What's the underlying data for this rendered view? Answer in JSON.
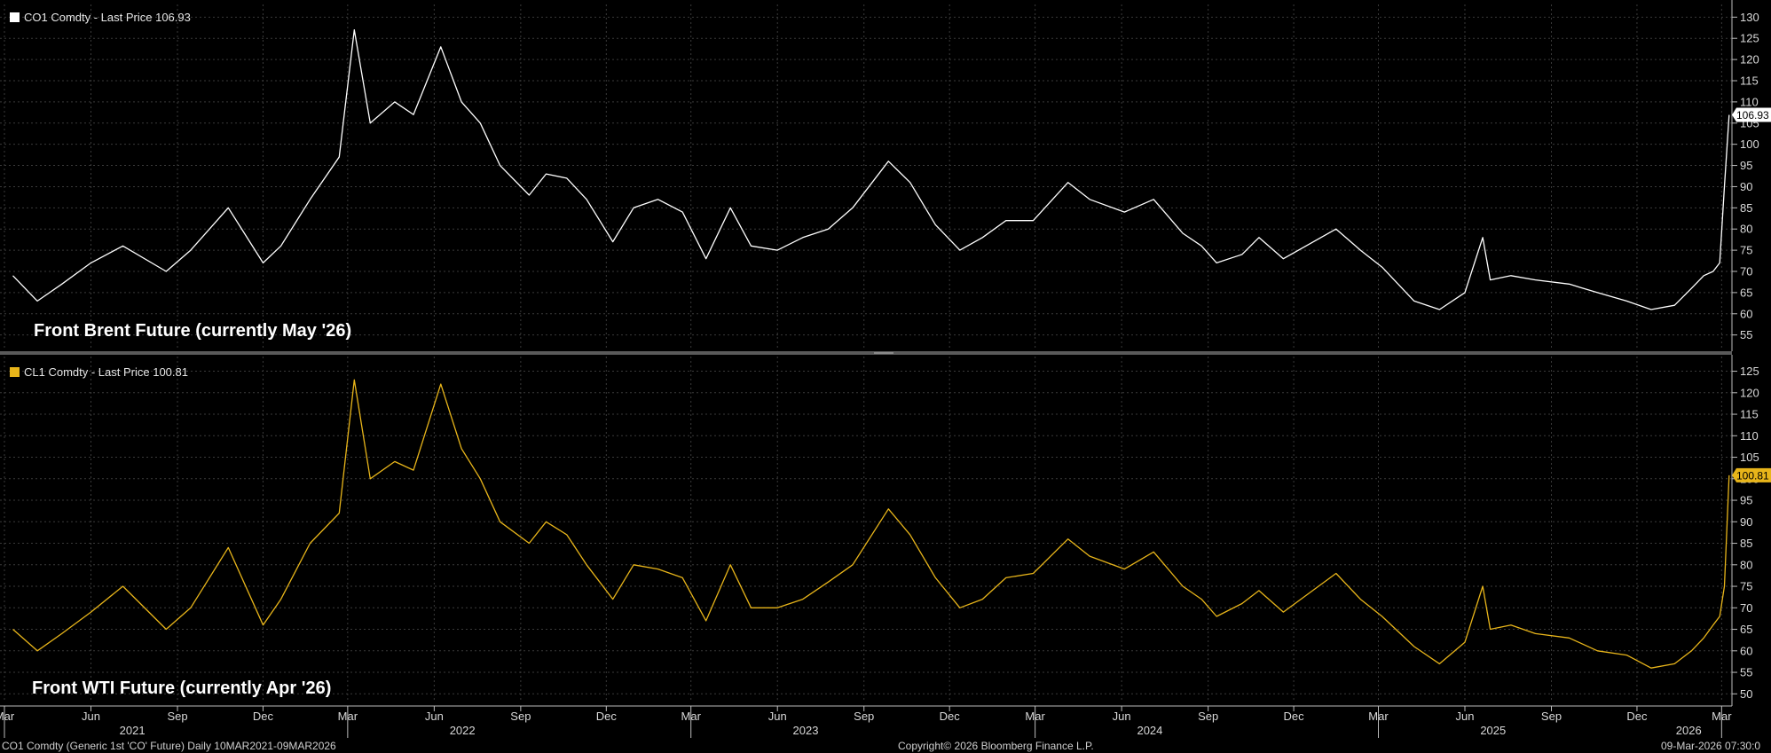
{
  "chart_data": [
    {
      "type": "line",
      "legend": "CO1 Comdty - Last Price 106.93",
      "annotation": "Front Brent Future (currently May '26)",
      "last_value": 106.93,
      "last_value_label": "106.93",
      "color": "#ffffff",
      "ylim": [
        52,
        133
      ],
      "yticks": [
        55,
        60,
        65,
        70,
        75,
        80,
        85,
        90,
        95,
        100,
        105,
        110,
        115,
        120,
        125,
        130
      ],
      "x": [
        "2021-03-10",
        "2021-04-05",
        "2021-05-01",
        "2021-06-01",
        "2021-07-05",
        "2021-08-20",
        "2021-09-15",
        "2021-10-25",
        "2021-12-01",
        "2021-12-20",
        "2022-01-20",
        "2022-02-20",
        "2022-03-08",
        "2022-03-25",
        "2022-04-20",
        "2022-05-10",
        "2022-06-08",
        "2022-06-30",
        "2022-07-20",
        "2022-08-10",
        "2022-09-10",
        "2022-09-28",
        "2022-10-20",
        "2022-11-10",
        "2022-12-08",
        "2022-12-30",
        "2023-01-25",
        "2023-02-20",
        "2023-03-17",
        "2023-04-12",
        "2023-05-04",
        "2023-06-01",
        "2023-06-28",
        "2023-07-25",
        "2023-08-20",
        "2023-09-27",
        "2023-10-20",
        "2023-11-16",
        "2023-12-12",
        "2024-01-05",
        "2024-01-30",
        "2024-02-28",
        "2024-04-05",
        "2024-04-28",
        "2024-06-04",
        "2024-07-05",
        "2024-08-05",
        "2024-08-25",
        "2024-09-10",
        "2024-10-07",
        "2024-10-25",
        "2024-11-20",
        "2025-01-15",
        "2025-02-10",
        "2025-03-05",
        "2025-04-08",
        "2025-05-05",
        "2025-06-01",
        "2025-06-20",
        "2025-06-28",
        "2025-07-20",
        "2025-08-15",
        "2025-09-20",
        "2025-10-20",
        "2025-11-20",
        "2025-12-16",
        "2026-01-10",
        "2026-01-28",
        "2026-02-10",
        "2026-02-20",
        "2026-02-27",
        "2026-03-04",
        "2026-03-09"
      ],
      "values": [
        69,
        63,
        67,
        72,
        76,
        70,
        75,
        85,
        72,
        76,
        87,
        97,
        127,
        105,
        110,
        107,
        123,
        110,
        105,
        95,
        88,
        93,
        92,
        87,
        77,
        85,
        87,
        84,
        73,
        85,
        76,
        75,
        78,
        80,
        85,
        96,
        91,
        81,
        75,
        78,
        82,
        82,
        91,
        87,
        84,
        87,
        79,
        76,
        72,
        74,
        78,
        73,
        80,
        75,
        71,
        63,
        61,
        65,
        78,
        68,
        69,
        68,
        67,
        65,
        63,
        61,
        62,
        66,
        69,
        70,
        72,
        90,
        106.93
      ]
    },
    {
      "type": "line",
      "legend": "CL1 Comdty - Last Price 100.81",
      "annotation": "Front WTI Future (currently Apr '26)",
      "last_value": 100.81,
      "last_value_label": "100.81",
      "color": "#e8b51a",
      "ylim": [
        48,
        128
      ],
      "yticks": [
        50,
        55,
        60,
        65,
        70,
        75,
        80,
        85,
        90,
        95,
        100,
        105,
        110,
        115,
        120,
        125
      ],
      "x": [
        "2021-03-10",
        "2021-04-05",
        "2021-05-01",
        "2021-06-01",
        "2021-07-05",
        "2021-08-20",
        "2021-09-15",
        "2021-10-25",
        "2021-12-01",
        "2021-12-20",
        "2022-01-20",
        "2022-02-20",
        "2022-03-08",
        "2022-03-25",
        "2022-04-20",
        "2022-05-10",
        "2022-06-08",
        "2022-06-30",
        "2022-07-20",
        "2022-08-10",
        "2022-09-10",
        "2022-09-28",
        "2022-10-20",
        "2022-11-10",
        "2022-12-08",
        "2022-12-30",
        "2023-01-25",
        "2023-02-20",
        "2023-03-17",
        "2023-04-12",
        "2023-05-04",
        "2023-06-01",
        "2023-06-28",
        "2023-07-25",
        "2023-08-20",
        "2023-09-27",
        "2023-10-20",
        "2023-11-16",
        "2023-12-12",
        "2024-01-05",
        "2024-01-30",
        "2024-02-28",
        "2024-04-05",
        "2024-04-28",
        "2024-06-04",
        "2024-07-05",
        "2024-08-05",
        "2024-08-25",
        "2024-09-10",
        "2024-10-07",
        "2024-10-25",
        "2024-11-20",
        "2025-01-15",
        "2025-02-10",
        "2025-03-05",
        "2025-04-08",
        "2025-05-05",
        "2025-06-01",
        "2025-06-20",
        "2025-06-28",
        "2025-07-20",
        "2025-08-15",
        "2025-09-20",
        "2025-10-20",
        "2025-11-20",
        "2025-12-16",
        "2026-01-10",
        "2026-01-28",
        "2026-02-10",
        "2026-02-20",
        "2026-02-27",
        "2026-03-04",
        "2026-03-09"
      ],
      "values": [
        65,
        60,
        64,
        69,
        75,
        65,
        70,
        84,
        66,
        72,
        85,
        92,
        123,
        100,
        104,
        102,
        122,
        107,
        100,
        90,
        85,
        90,
        87,
        80,
        72,
        80,
        79,
        77,
        67,
        80,
        70,
        70,
        72,
        76,
        80,
        93,
        87,
        77,
        70,
        72,
        77,
        78,
        86,
        82,
        79,
        83,
        75,
        72,
        68,
        71,
        74,
        69,
        78,
        72,
        68,
        61,
        57,
        62,
        75,
        65,
        66,
        64,
        63,
        60,
        59,
        56,
        57,
        60,
        63,
        66,
        68,
        75,
        100.81
      ]
    },
    {
      "type": "axis",
      "x_range": [
        "2021-03-01",
        "2026-03-12"
      ],
      "month_ticks": [
        {
          "date": "2021-03-01",
          "label": "Mar"
        },
        {
          "date": "2021-06-01",
          "label": "Jun"
        },
        {
          "date": "2021-09-01",
          "label": "Sep"
        },
        {
          "date": "2021-12-01",
          "label": "Dec"
        },
        {
          "date": "2022-03-01",
          "label": "Mar"
        },
        {
          "date": "2022-06-01",
          "label": "Jun"
        },
        {
          "date": "2022-09-01",
          "label": "Sep"
        },
        {
          "date": "2022-12-01",
          "label": "Dec"
        },
        {
          "date": "2023-03-01",
          "label": "Mar"
        },
        {
          "date": "2023-06-01",
          "label": "Jun"
        },
        {
          "date": "2023-09-01",
          "label": "Sep"
        },
        {
          "date": "2023-12-01",
          "label": "Dec"
        },
        {
          "date": "2024-03-01",
          "label": "Mar"
        },
        {
          "date": "2024-06-01",
          "label": "Jun"
        },
        {
          "date": "2024-09-01",
          "label": "Sep"
        },
        {
          "date": "2024-12-01",
          "label": "Dec"
        },
        {
          "date": "2025-03-01",
          "label": "Mar"
        },
        {
          "date": "2025-06-01",
          "label": "Jun"
        },
        {
          "date": "2025-09-01",
          "label": "Sep"
        },
        {
          "date": "2025-12-01",
          "label": "Dec"
        },
        {
          "date": "2026-03-01",
          "label": "Mar"
        }
      ],
      "year_labels": [
        {
          "date": "2021-07-15",
          "label": "2021"
        },
        {
          "date": "2022-07-01",
          "label": "2022"
        },
        {
          "date": "2023-07-01",
          "label": "2023"
        },
        {
          "date": "2024-07-01",
          "label": "2024"
        },
        {
          "date": "2025-07-01",
          "label": "2025"
        },
        {
          "date": "2026-01-25",
          "label": "2026"
        }
      ],
      "grid": true
    }
  ],
  "footer": {
    "left": "CO1 Comdty (Generic 1st 'CO' Future) Daily 10MAR2021-09MAR2026",
    "center": "Copyright© 2026 Bloomberg Finance L.P.",
    "right": "09-Mar-2026 07:30:0"
  }
}
